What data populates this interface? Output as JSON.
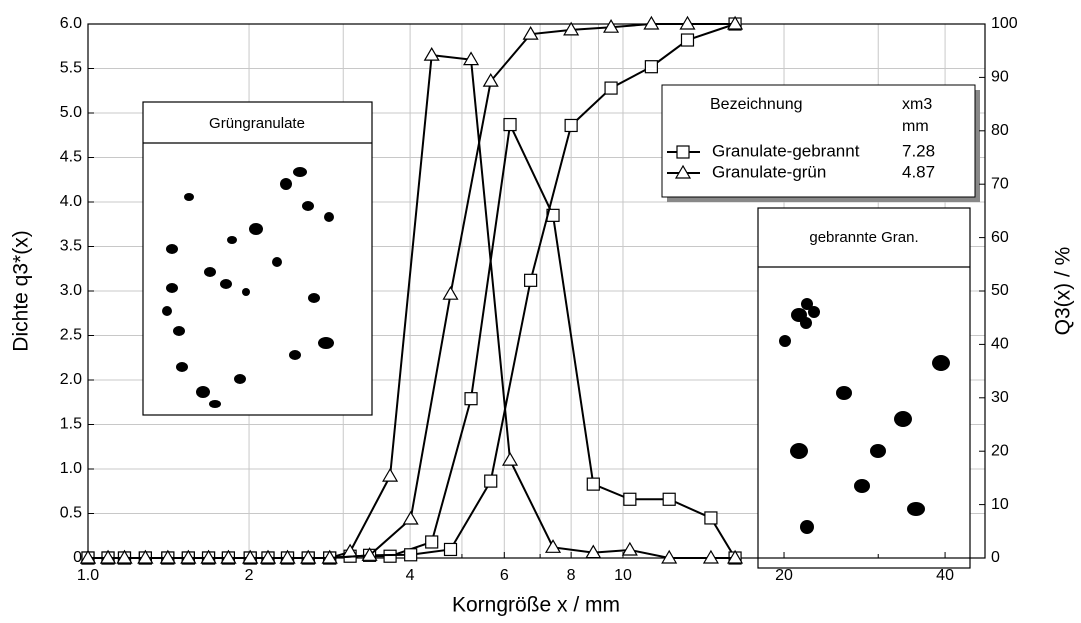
{
  "chart_data": {
    "type": "line",
    "xlabel": "Korngröße x / mm",
    "ylabel": "Dichte q3*(x)",
    "y2label": "Q3(x) / %",
    "xscale": "log",
    "grid": true,
    "xlim": [
      1,
      47.5
    ],
    "xticks": [
      {
        "value": 1,
        "label": "1.0"
      },
      2,
      4,
      6,
      8,
      10,
      20,
      40
    ],
    "x_minor_ticks": [
      3,
      5,
      7,
      9,
      30
    ],
    "ylim": [
      0,
      6
    ],
    "yticks": [
      0,
      0.5,
      {
        "value": 1,
        "label": "1.0"
      },
      1.5,
      {
        "value": 2,
        "label": "2.0"
      },
      2.5,
      {
        "value": 3,
        "label": "3.0"
      },
      3.5,
      {
        "value": 4,
        "label": "4.0"
      },
      4.5,
      {
        "value": 5,
        "label": "5.0"
      },
      5.5,
      {
        "value": 6,
        "label": "6.0"
      }
    ],
    "y2lim": [
      0,
      100
    ],
    "y2ticks": [
      0,
      10,
      20,
      30,
      40,
      50,
      60,
      70,
      80,
      90,
      100
    ],
    "legend": {
      "title": "Bezeichnung",
      "value_title": "xm3",
      "value_unit": "mm",
      "position": "upper right"
    },
    "series": [
      {
        "name": "Granulate-gebrannt",
        "color": "#000000",
        "marker": "square",
        "xm3": 7.28,
        "in_legend": true,
        "x": [
          1.0,
          1.09,
          1.17,
          1.28,
          1.41,
          1.54,
          1.68,
          1.83,
          2.01,
          2.17,
          2.36,
          2.58,
          2.83,
          3.09,
          3.67,
          4.39,
          5.2,
          6.15,
          7.4,
          8.8,
          10.3,
          12.2,
          14.6,
          16.2
        ],
        "values": [
          0,
          0,
          0,
          0,
          0,
          0,
          0,
          0,
          0,
          0,
          0,
          0,
          0,
          0.02,
          0.02,
          0.18,
          1.79,
          4.87,
          3.85,
          0.83,
          0.66,
          0.66,
          0.45,
          0
        ]
      },
      {
        "name": "Granulate-grün",
        "color": "#000000",
        "marker": "triangle",
        "xm3": 4.87,
        "in_legend": true,
        "x": [
          1.0,
          1.09,
          1.17,
          1.28,
          1.41,
          1.54,
          1.68,
          1.83,
          2.01,
          2.17,
          2.36,
          2.58,
          2.83,
          3.09,
          3.67,
          4.39,
          5.2,
          6.15,
          7.4,
          8.8,
          10.3,
          12.2,
          14.6,
          16.2
        ],
        "values": [
          0,
          0,
          0,
          0,
          0,
          0,
          0,
          0,
          0,
          0,
          0,
          0,
          0,
          0.07,
          0.92,
          5.65,
          5.6,
          1.1,
          0.12,
          0.06,
          0.09,
          0,
          0,
          0
        ]
      },
      {
        "name": "Granulate-gebrannt",
        "color": "#000000",
        "marker": "square",
        "axis": "y2",
        "in_legend": false,
        "x": [
          1.0,
          1.09,
          1.17,
          1.28,
          1.41,
          1.54,
          1.68,
          1.83,
          2.01,
          2.17,
          2.36,
          2.58,
          2.83,
          3.36,
          4.01,
          4.76,
          5.66,
          6.72,
          8.0,
          9.5,
          11.3,
          13.2,
          16.2
        ],
        "values": [
          0,
          0,
          0,
          0,
          0,
          0,
          0,
          0,
          0,
          0,
          0,
          0,
          0,
          0.5,
          0.6,
          1.6,
          14.4,
          52,
          81,
          88,
          92,
          97,
          100
        ]
      },
      {
        "name": "Granulate-grün",
        "color": "#000000",
        "marker": "triangle",
        "axis": "y2",
        "in_legend": false,
        "x": [
          1.0,
          1.09,
          1.17,
          1.28,
          1.41,
          1.54,
          1.68,
          1.83,
          2.01,
          2.17,
          2.36,
          2.58,
          2.83,
          3.36,
          4.01,
          4.76,
          5.66,
          6.72,
          8.0,
          9.5,
          11.3,
          13.2,
          16.2
        ],
        "values": [
          0,
          0,
          0,
          0,
          0,
          0,
          0,
          0,
          0,
          0,
          0,
          0,
          0,
          0.5,
          7.3,
          49.4,
          89.3,
          98.1,
          98.9,
          99.4,
          100,
          100,
          100
        ]
      }
    ],
    "insets": [
      {
        "title": "Grüngranulate"
      },
      {
        "title": "gebrannte Gran."
      }
    ]
  }
}
